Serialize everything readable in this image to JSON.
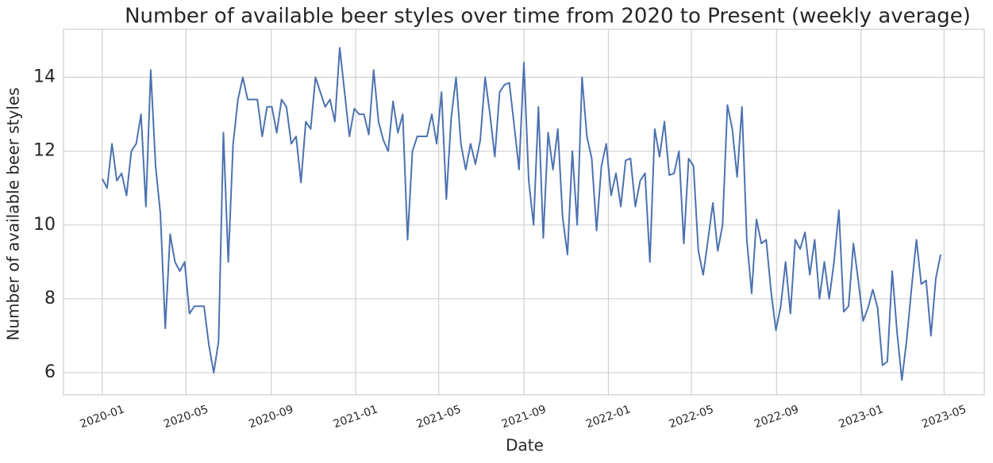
{
  "chart_data": {
    "type": "line",
    "title": "Number of available beer styles over time from 2020 to Present (weekly average)",
    "x_label": "Date",
    "y_label": "Number of available beer styles",
    "color": "#4c72b0",
    "grid": true,
    "values": [
      11.25,
      11.0,
      12.2,
      11.2,
      11.4,
      10.8,
      12.0,
      12.2,
      13.0,
      10.5,
      14.2,
      11.6,
      10.3,
      7.2,
      9.75,
      9.0,
      8.75,
      9.0,
      7.6,
      7.8,
      7.8,
      7.8,
      6.75,
      6.0,
      6.85,
      12.5,
      9.0,
      12.2,
      13.4,
      14.0,
      13.4,
      13.4,
      13.4,
      12.4,
      13.2,
      13.2,
      12.5,
      13.4,
      13.2,
      12.2,
      12.4,
      11.15,
      12.8,
      12.6,
      14.0,
      13.6,
      13.2,
      13.4,
      12.8,
      14.8,
      13.6,
      12.4,
      13.15,
      13.0,
      13.0,
      12.45,
      14.2,
      12.8,
      12.3,
      12.0,
      13.35,
      12.5,
      13.0,
      9.6,
      12.0,
      12.4,
      12.4,
      12.4,
      13.0,
      12.2,
      13.6,
      10.7,
      12.9,
      14.0,
      12.2,
      11.5,
      12.2,
      11.65,
      12.3,
      14.0,
      13.0,
      11.85,
      13.6,
      13.8,
      13.85,
      12.7,
      11.5,
      14.4,
      11.2,
      10.0,
      13.2,
      9.65,
      12.5,
      11.5,
      12.6,
      10.2,
      9.2,
      12.0,
      10.0,
      14.0,
      12.4,
      11.8,
      9.85,
      11.6,
      12.2,
      10.8,
      11.4,
      10.5,
      11.75,
      11.8,
      10.5,
      11.2,
      11.4,
      9.0,
      12.6,
      11.85,
      12.8,
      11.35,
      11.4,
      12.0,
      9.5,
      11.8,
      11.6,
      9.3,
      8.65,
      9.6,
      10.6,
      9.3,
      10.0,
      13.25,
      12.6,
      11.3,
      13.2,
      9.6,
      8.15,
      10.15,
      9.5,
      9.6,
      8.2,
      7.15,
      7.8,
      9.0,
      7.6,
      9.6,
      9.35,
      9.8,
      8.65,
      9.6,
      8.0,
      9.0,
      8.0,
      9.0,
      10.4,
      7.65,
      7.8,
      9.5,
      8.5,
      7.4,
      7.75,
      8.25,
      7.75,
      6.2,
      6.3,
      8.75,
      7.1,
      5.8,
      6.9,
      8.3,
      9.6,
      8.4,
      8.5,
      7.0,
      8.55,
      9.2
    ],
    "xlim": [
      -8,
      182
    ],
    "xticks": [
      {
        "value": 0,
        "label": "2020-01"
      },
      {
        "value": 17.29,
        "label": "2020-05"
      },
      {
        "value": 34.86,
        "label": "2020-09"
      },
      {
        "value": 52.29,
        "label": "2021-01"
      },
      {
        "value": 69.43,
        "label": "2021-05"
      },
      {
        "value": 87,
        "label": "2021-09"
      },
      {
        "value": 104.43,
        "label": "2022-01"
      },
      {
        "value": 121.57,
        "label": "2022-05"
      },
      {
        "value": 139.14,
        "label": "2022-09"
      },
      {
        "value": 156.57,
        "label": "2023-01"
      },
      {
        "value": 173.71,
        "label": "2023-05"
      }
    ],
    "ylim": [
      5.4,
      15.3
    ],
    "yticks": [
      6,
      8,
      10,
      12,
      14
    ]
  }
}
